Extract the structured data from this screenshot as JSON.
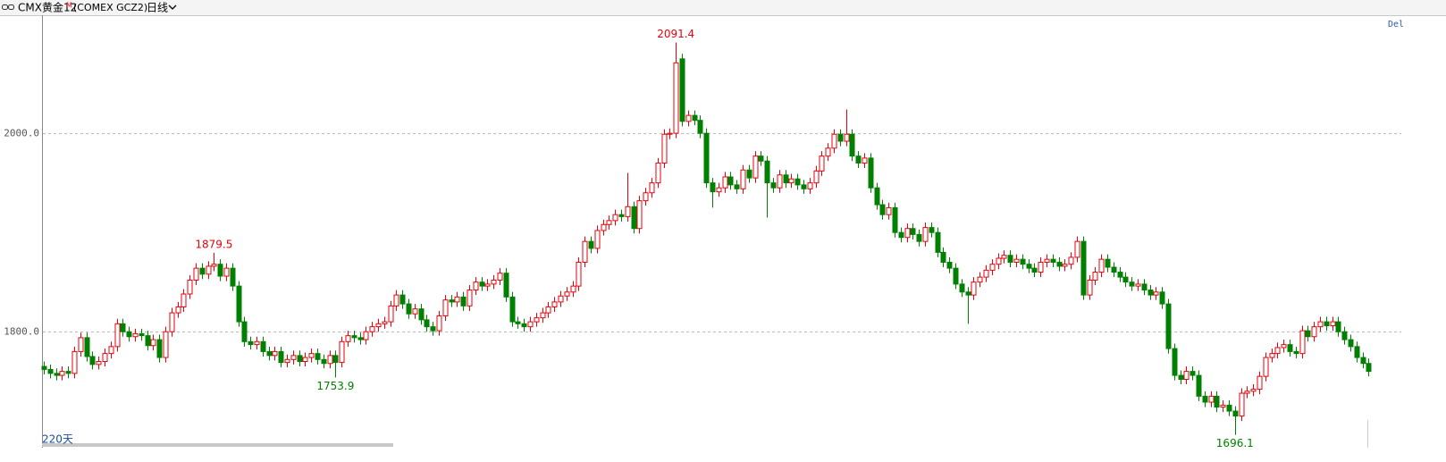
{
  "header": {
    "title": "CMX黄金12",
    "title_sup": "M",
    "code": "(COMEX GCZ2)",
    "period": "日线"
  },
  "corner_text": "Del",
  "footer": {
    "range": "220天"
  },
  "chart_data": {
    "type": "candlestick",
    "open": [
      1765,
      1762,
      1758,
      1756,
      1760,
      1758,
      1780,
      1794,
      1775,
      1767,
      1770,
      1778,
      1785,
      1808,
      1800,
      1795,
      1798,
      1796,
      1786,
      1792,
      1774,
      1800,
      1819,
      1825,
      1838,
      1852,
      1864,
      1858,
      1866,
      1868,
      1856,
      1864,
      1846,
      1810,
      1790,
      1787,
      1790,
      1780,
      1776,
      1780,
      1769,
      1772,
      1776,
      1770,
      1774,
      1778,
      1772,
      1768,
      1776,
      1769,
      1790,
      1796,
      1794,
      1792,
      1800,
      1805,
      1808,
      1810,
      1826,
      1837,
      1828,
      1818,
      1823,
      1812,
      1805,
      1801,
      1816,
      1832,
      1830,
      1835,
      1826,
      1842,
      1850,
      1846,
      1848,
      1852,
      1859,
      1835,
      1810,
      1808,
      1805,
      1810,
      1814,
      1819,
      1825,
      1830,
      1836,
      1840,
      1846,
      1870,
      1891,
      1884,
      1902,
      1908,
      1912,
      1918,
      1916,
      1926,
      1904,
      1932,
      1940,
      1950,
      1970,
      1999,
      2000,
      2075,
      2012,
      2018,
      2013,
      2000,
      1950,
      1941,
      1945,
      1956,
      1948,
      1944,
      1963,
      1955,
      1977,
      1972,
      1950,
      1945,
      1958,
      1950,
      1954,
      1948,
      1944,
      1950,
      1962,
      1977,
      1985,
      1999,
      1992,
      1999,
      1977,
      1970,
      1975,
      1945,
      1928,
      1918,
      1925,
      1900,
      1895,
      1904,
      1898,
      1891,
      1905,
      1900,
      1880,
      1870,
      1864,
      1848,
      1840,
      1837,
      1850,
      1855,
      1862,
      1868,
      1874,
      1877,
      1870,
      1873,
      1868,
      1864,
      1860,
      1870,
      1873,
      1870,
      1866,
      1868,
      1875,
      1891,
      1837,
      1852,
      1860,
      1873,
      1865,
      1860,
      1855,
      1850,
      1846,
      1848,
      1842,
      1837,
      1840,
      1828,
      1783,
      1756,
      1752,
      1760,
      1756,
      1735,
      1729,
      1735,
      1724,
      1726,
      1720,
      1715,
      1738,
      1740,
      1742,
      1755,
      1774,
      1778,
      1784,
      1787,
      1780,
      1778,
      1801,
      1795,
      1805,
      1810,
      1806,
      1810,
      1800,
      1792,
      1785,
      1774,
      1768
    ],
    "high": [
      1770,
      1767,
      1763,
      1765,
      1765,
      1785,
      1799,
      1799,
      1780,
      1775,
      1783,
      1790,
      1813,
      1813,
      1805,
      1803,
      1803,
      1801,
      1797,
      1797,
      1805,
      1824,
      1830,
      1843,
      1857,
      1869,
      1869,
      1871,
      1879.5,
      1873,
      1869,
      1869,
      1851,
      1815,
      1795,
      1795,
      1795,
      1785,
      1785,
      1785,
      1777,
      1781,
      1781,
      1779,
      1783,
      1783,
      1777,
      1781,
      1781,
      1795,
      1801,
      1801,
      1799,
      1805,
      1810,
      1813,
      1815,
      1831,
      1842,
      1842,
      1833,
      1828,
      1828,
      1817,
      1810,
      1821,
      1837,
      1837,
      1840,
      1840,
      1847,
      1855,
      1855,
      1853,
      1857,
      1864,
      1864,
      1840,
      1815,
      1813,
      1815,
      1819,
      1824,
      1830,
      1835,
      1841,
      1845,
      1851,
      1875,
      1896,
      1896,
      1907,
      1913,
      1917,
      1923,
      1923,
      1960,
      1931,
      1937,
      1945,
      1955,
      1975,
      2004,
      2005,
      2091.4,
      2080,
      2023,
      2023,
      2018,
      2005,
      1955,
      1950,
      1961,
      1961,
      1953,
      1968,
      1968,
      1982,
      1982,
      1977,
      1955,
      1963,
      1963,
      1959,
      1959,
      1953,
      1955,
      1967,
      1982,
      1990,
      2004,
      2004,
      2024,
      2004,
      1982,
      1980,
      1980,
      1950,
      1933,
      1930,
      1930,
      1905,
      1909,
      1909,
      1903,
      1910,
      1910,
      1905,
      1885,
      1875,
      1869,
      1853,
      1845,
      1855,
      1860,
      1867,
      1873,
      1879,
      1882,
      1882,
      1878,
      1878,
      1873,
      1869,
      1875,
      1878,
      1878,
      1875,
      1873,
      1880,
      1896,
      1896,
      1857,
      1865,
      1878,
      1878,
      1870,
      1865,
      1860,
      1855,
      1853,
      1853,
      1847,
      1845,
      1845,
      1833,
      1788,
      1761,
      1765,
      1765,
      1761,
      1740,
      1740,
      1740,
      1731,
      1731,
      1725,
      1743,
      1745,
      1747,
      1760,
      1779,
      1783,
      1789,
      1792,
      1792,
      1785,
      1806,
      1806,
      1810,
      1815,
      1815,
      1815,
      1815,
      1805,
      1797,
      1790,
      1779,
      1773
    ],
    "low": [
      1757,
      1753,
      1751,
      1751,
      1753,
      1753,
      1775,
      1770,
      1762,
      1762,
      1765,
      1773,
      1780,
      1795,
      1790,
      1790,
      1791,
      1781,
      1781,
      1769,
      1769,
      1795,
      1814,
      1820,
      1833,
      1847,
      1853,
      1853,
      1861,
      1851,
      1851,
      1841,
      1805,
      1785,
      1782,
      1782,
      1775,
      1771,
      1771,
      1764,
      1764,
      1767,
      1765,
      1765,
      1769,
      1767,
      1763,
      1763,
      1753.9,
      1764,
      1785,
      1789,
      1787,
      1787,
      1795,
      1800,
      1803,
      1805,
      1821,
      1823,
      1813,
      1813,
      1807,
      1800,
      1796,
      1796,
      1811,
      1825,
      1825,
      1821,
      1821,
      1837,
      1841,
      1841,
      1843,
      1847,
      1830,
      1805,
      1803,
      1800,
      1800,
      1805,
      1809,
      1814,
      1820,
      1825,
      1831,
      1835,
      1841,
      1865,
      1879,
      1879,
      1897,
      1903,
      1907,
      1911,
      1911,
      1899,
      1899,
      1927,
      1935,
      1945,
      1965,
      1994,
      1995,
      2007,
      2007,
      2008,
      1995,
      1945,
      1925,
      1936,
      1940,
      1943,
      1939,
      1939,
      1950,
      1950,
      1967,
      1915,
      1940,
      1940,
      1945,
      1945,
      1943,
      1939,
      1939,
      1945,
      1957,
      1972,
      1980,
      1987,
      1987,
      1972,
      1965,
      1965,
      1940,
      1923,
      1913,
      1913,
      1895,
      1890,
      1890,
      1893,
      1886,
      1886,
      1895,
      1875,
      1865,
      1859,
      1843,
      1835,
      1808,
      1832,
      1845,
      1850,
      1857,
      1863,
      1869,
      1865,
      1865,
      1863,
      1859,
      1855,
      1855,
      1865,
      1865,
      1861,
      1861,
      1863,
      1870,
      1832,
      1832,
      1847,
      1855,
      1860,
      1855,
      1850,
      1845,
      1841,
      1841,
      1837,
      1832,
      1832,
      1823,
      1778,
      1751,
      1747,
      1747,
      1751,
      1730,
      1724,
      1724,
      1719,
      1719,
      1715,
      1696.1,
      1710,
      1733,
      1735,
      1737,
      1750,
      1769,
      1773,
      1779,
      1775,
      1773,
      1773,
      1790,
      1790,
      1800,
      1801,
      1801,
      1795,
      1787,
      1780,
      1769,
      1763,
      1755
    ],
    "close": [
      1762,
      1758,
      1756,
      1760,
      1758,
      1780,
      1794,
      1775,
      1767,
      1770,
      1778,
      1785,
      1808,
      1800,
      1795,
      1798,
      1796,
      1786,
      1792,
      1774,
      1800,
      1819,
      1825,
      1838,
      1852,
      1864,
      1858,
      1866,
      1868,
      1856,
      1864,
      1846,
      1810,
      1790,
      1787,
      1790,
      1780,
      1776,
      1780,
      1769,
      1772,
      1776,
      1770,
      1774,
      1778,
      1772,
      1768,
      1776,
      1769,
      1790,
      1796,
      1794,
      1792,
      1800,
      1805,
      1808,
      1810,
      1826,
      1837,
      1828,
      1818,
      1823,
      1812,
      1805,
      1801,
      1816,
      1832,
      1830,
      1835,
      1826,
      1842,
      1850,
      1846,
      1848,
      1852,
      1859,
      1835,
      1810,
      1808,
      1805,
      1810,
      1814,
      1819,
      1825,
      1830,
      1836,
      1840,
      1846,
      1870,
      1891,
      1884,
      1902,
      1908,
      1912,
      1918,
      1916,
      1926,
      1904,
      1932,
      1940,
      1950,
      1970,
      1999,
      2000,
      2071,
      2012,
      2018,
      2013,
      2000,
      1950,
      1941,
      1945,
      1956,
      1948,
      1944,
      1963,
      1955,
      1977,
      1972,
      1950,
      1945,
      1958,
      1950,
      1954,
      1948,
      1944,
      1950,
      1962,
      1977,
      1985,
      1999,
      1992,
      1999,
      1977,
      1970,
      1975,
      1945,
      1928,
      1918,
      1925,
      1900,
      1895,
      1904,
      1898,
      1891,
      1905,
      1900,
      1880,
      1870,
      1864,
      1848,
      1840,
      1837,
      1850,
      1855,
      1862,
      1868,
      1874,
      1877,
      1870,
      1873,
      1868,
      1864,
      1860,
      1870,
      1873,
      1870,
      1866,
      1868,
      1875,
      1891,
      1837,
      1852,
      1860,
      1873,
      1865,
      1860,
      1855,
      1850,
      1846,
      1848,
      1842,
      1837,
      1840,
      1828,
      1783,
      1756,
      1752,
      1760,
      1756,
      1735,
      1729,
      1735,
      1724,
      1726,
      1720,
      1715,
      1738,
      1740,
      1742,
      1755,
      1774,
      1778,
      1784,
      1787,
      1780,
      1778,
      1801,
      1795,
      1805,
      1810,
      1806,
      1810,
      1800,
      1792,
      1785,
      1774,
      1768,
      1760
    ],
    "ylim": [
      1684,
      2119
    ],
    "yticks": [
      {
        "value": 1800,
        "label": "1800.0"
      },
      {
        "value": 2000,
        "label": "2000.0"
      }
    ],
    "grid": true,
    "up_color": "#e8000b",
    "down_color": "#008000",
    "annotations": [
      2091.4,
      1879.5,
      1753.9,
      1696.1
    ]
  }
}
